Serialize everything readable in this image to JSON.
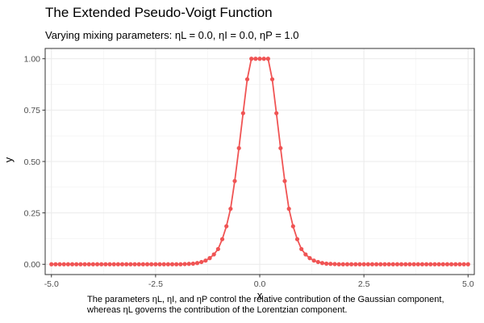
{
  "chart_data": {
    "type": "line",
    "title": "The Extended Pseudo-Voigt Function",
    "subtitle": "Varying mixing parameters: ηL = 0.0, ηI = 0.0, ηP = 1.0",
    "xlabel": "x",
    "ylabel": "y",
    "xlim": [
      -5.15,
      5.15
    ],
    "ylim": [
      -0.05,
      1.05
    ],
    "x_ticks": [
      -5.0,
      -2.5,
      0.0,
      2.5,
      5.0
    ],
    "x_tick_labels": [
      "-5.0",
      "-2.5",
      "0.0",
      "2.5",
      "5.0"
    ],
    "y_ticks": [
      0.0,
      0.25,
      0.5,
      0.75,
      1.0
    ],
    "y_tick_labels": [
      "0.00",
      "0.25",
      "0.50",
      "0.75",
      "1.00"
    ],
    "grid": true,
    "color": "#f05454",
    "series": [
      {
        "x": [
          -5.0,
          -4.9,
          -4.8,
          -4.7,
          -4.6,
          -4.5,
          -4.4,
          -4.3,
          -4.2,
          -4.1,
          -4.0,
          -3.9,
          -3.8,
          -3.7,
          -3.6,
          -3.5,
          -3.4,
          -3.3,
          -3.2,
          -3.1,
          -3.0,
          -2.9,
          -2.8,
          -2.7,
          -2.6,
          -2.5,
          -2.4,
          -2.3,
          -2.2,
          -2.1,
          -2.0,
          -1.9,
          -1.8,
          -1.7,
          -1.6,
          -1.5,
          -1.4,
          -1.3,
          -1.2,
          -1.1,
          -1.0,
          -0.9,
          -0.8,
          -0.7,
          -0.6,
          -0.5,
          -0.4,
          -0.3,
          -0.2,
          -0.1,
          0.0,
          0.1,
          0.2,
          0.3,
          0.4,
          0.5,
          0.6,
          0.7,
          0.8,
          0.9,
          1.0,
          1.1,
          1.2,
          1.3,
          1.4,
          1.5,
          1.6,
          1.7,
          1.8,
          1.9,
          2.0,
          2.1,
          2.2,
          2.3,
          2.4,
          2.5,
          2.6,
          2.7,
          2.8,
          2.9,
          3.0,
          3.1,
          3.2,
          3.3,
          3.4,
          3.5,
          3.6,
          3.7,
          3.8,
          3.9,
          4.0,
          4.1,
          4.2,
          4.3,
          4.4,
          4.5,
          4.6,
          4.7,
          4.8,
          4.9,
          5.0
        ],
        "y": [
          0.0,
          0.0,
          0.0,
          0.0,
          0.0,
          0.0,
          0.0,
          0.0,
          0.0,
          0.0,
          0.0,
          0.0,
          0.0,
          0.0,
          0.0,
          0.0,
          0.0,
          0.0,
          0.0,
          0.0,
          0.0,
          0.0,
          0.0,
          0.0,
          0.0,
          0.0,
          0.0,
          0.0,
          0.0,
          0.0,
          0.0,
          0.0,
          0.001,
          0.002,
          0.003,
          0.006,
          0.011,
          0.018,
          0.03,
          0.048,
          0.074,
          0.122,
          0.185,
          0.27,
          0.405,
          0.565,
          0.735,
          0.9,
          1.0,
          1.0,
          1.0,
          1.0,
          1.0,
          0.9,
          0.735,
          0.565,
          0.405,
          0.27,
          0.185,
          0.122,
          0.074,
          0.048,
          0.03,
          0.018,
          0.011,
          0.006,
          0.003,
          0.002,
          0.001,
          0.0,
          0.0,
          0.0,
          0.0,
          0.0,
          0.0,
          0.0,
          0.0,
          0.0,
          0.0,
          0.0,
          0.0,
          0.0,
          0.0,
          0.0,
          0.0,
          0.0,
          0.0,
          0.0,
          0.0,
          0.0,
          0.0,
          0.0,
          0.0,
          0.0,
          0.0,
          0.0,
          0.0,
          0.0,
          0.0,
          0.0,
          0.0
        ]
      }
    ],
    "caption": [
      "The parameters ηL, ηI, and ηP control the relative contribution of the Gaussian component,",
      "whereas ηL governs the contribution of the Lorentzian component."
    ]
  }
}
